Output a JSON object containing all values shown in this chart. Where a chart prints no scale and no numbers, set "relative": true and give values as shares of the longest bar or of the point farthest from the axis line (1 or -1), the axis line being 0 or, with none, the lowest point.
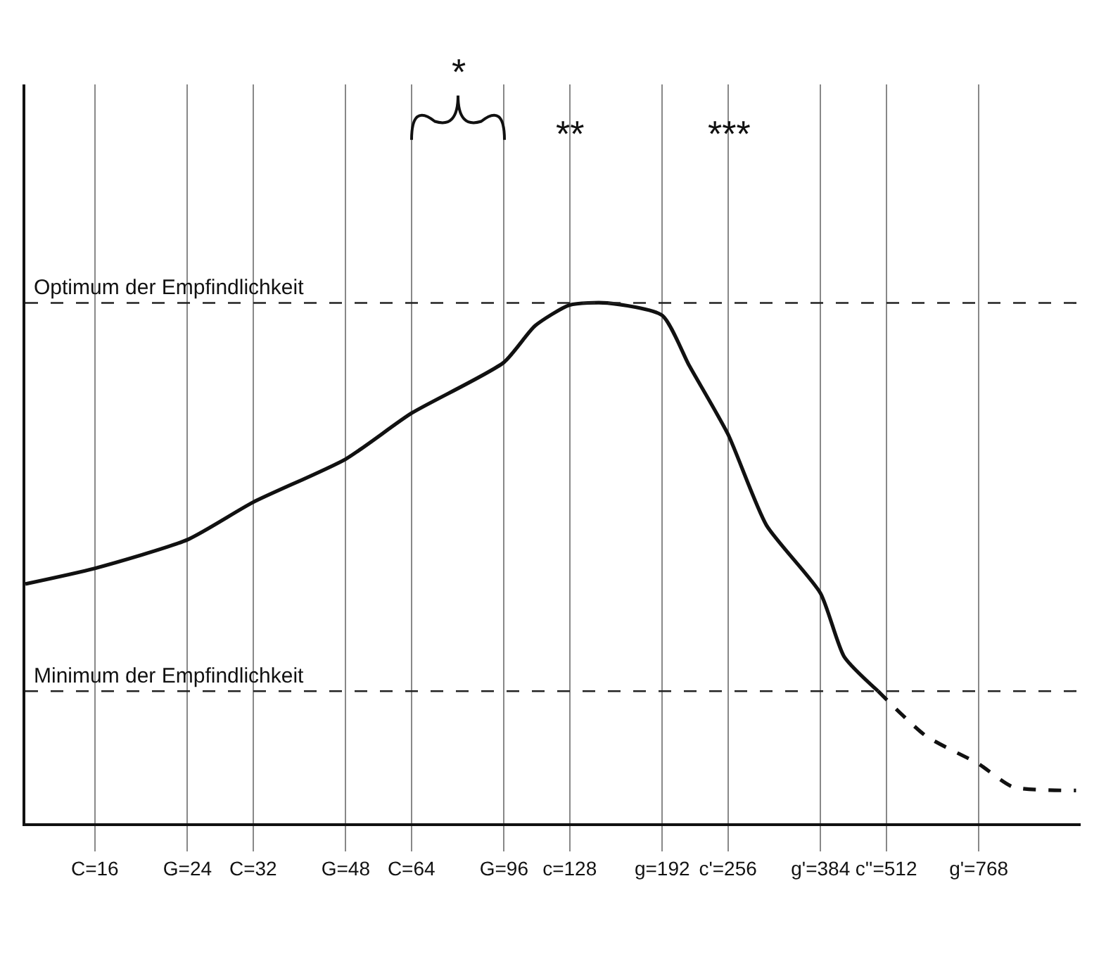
{
  "chart_data": {
    "type": "line",
    "relative": true,
    "log": "x",
    "x": [
      11.8,
      16,
      24,
      32,
      48,
      64,
      96,
      110,
      128,
      151,
      192,
      216,
      256,
      303,
      384,
      426,
      494
    ],
    "series": [
      {
        "color": "#111111",
        "line_style": "solid",
        "values": [
          0.46,
          0.49,
          0.545,
          0.617,
          0.7,
          0.788,
          0.886,
          0.956,
          0.996,
          1.0,
          0.976,
          0.88,
          0.748,
          0.573,
          0.442,
          0.32,
          0.254
        ]
      },
      {
        "color": "#111111",
        "line_style": "dashed",
        "x": [
          494,
          609,
          768,
          891,
          1176
        ],
        "values": [
          0.254,
          0.168,
          0.114,
          0.07,
          0.063
        ]
      }
    ],
    "xlim": [
      11.8,
      1200
    ],
    "xticks": [
      {
        "value": 16,
        "label": "C=16"
      },
      {
        "value": 24,
        "label": "G=24"
      },
      {
        "value": 32,
        "label": "C=32"
      },
      {
        "value": 48,
        "label": "G=48"
      },
      {
        "value": 64,
        "label": "C=64"
      },
      {
        "value": 96,
        "label": "G=96"
      },
      {
        "value": 128,
        "label": "c=128"
      },
      {
        "value": 192,
        "label": "g=192"
      },
      {
        "value": 256,
        "label": "c'=256"
      },
      {
        "value": 384,
        "label": "g'=384"
      },
      {
        "value": 512,
        "label": "c''=512"
      },
      {
        "value": 768,
        "label": "g'=768"
      }
    ],
    "grid": "x",
    "marker": "none",
    "ref_lines": [
      {
        "axis": "y",
        "value": 1.0,
        "label": "Optimum der Empfindlichkeit",
        "line_style": "dashed"
      },
      {
        "axis": "y",
        "value": 0.254,
        "label": "Minimum der Empfindlichkeit",
        "line_style": "dashed"
      }
    ],
    "annotations": [
      "*",
      "**",
      "***"
    ]
  }
}
